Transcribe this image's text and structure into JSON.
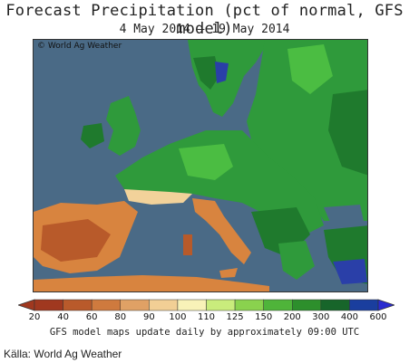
{
  "header": {
    "title": "Forecast Precipitation (pct of normal, GFS model)",
    "dates": "4 May 2014 — 19 May 2014"
  },
  "map": {
    "copyright": "© World Ag Weather",
    "colors": {
      "sea": "#4a6a86",
      "land_green": "#2f9a3b",
      "land_dark": "#1f7a2d",
      "land_light": "#4bbd42",
      "dry_orange": "#d8843f",
      "dry_brown": "#b85a2a",
      "very_light": "#f2d29a",
      "blue": "#2a3fa8"
    }
  },
  "legend": {
    "ticks": [
      "20",
      "40",
      "60",
      "80",
      "90",
      "100",
      "110",
      "125",
      "150",
      "200",
      "300",
      "400",
      "600"
    ],
    "colors": [
      "#a0381f",
      "#b95a2b",
      "#cf7a3e",
      "#e0a165",
      "#f2cf95",
      "#f8f2b8",
      "#c9ec7c",
      "#8ad24e",
      "#4fb43a",
      "#2d8f2c",
      "#17652a",
      "#1a3e9e",
      "#2a2bd0"
    ]
  },
  "footer": {
    "note": "GFS model maps update daily by approximately 09:00 UTC",
    "source": "Källa: World Ag Weather"
  }
}
